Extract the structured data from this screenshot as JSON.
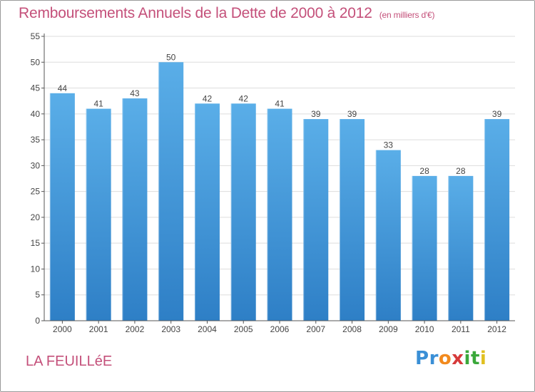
{
  "title": "Remboursements Annuels de la Dette de 2000 à 2012",
  "unit_note": "(en milliers d'€)",
  "commune": "LA FEUILLéE",
  "logo": {
    "letters": [
      "P",
      "r",
      "o",
      "x",
      "i",
      "t",
      "i"
    ],
    "colors": [
      "#3a8fd6",
      "#3a8fd6",
      "#f28a1e",
      "#d63a3a",
      "#3aa83a",
      "#3aa83a",
      "#e0c020"
    ]
  },
  "colors": {
    "bar_top": "#5aaee8",
    "bar_bottom": "#2e7fc6",
    "title": "#c4507a",
    "grid": "#dddddd"
  },
  "chart_data": {
    "type": "bar",
    "title": "Remboursements Annuels de la Dette de 2000 à 2012",
    "xlabel": "",
    "ylabel": "",
    "ylim": [
      0,
      55
    ],
    "yticks": [
      0,
      5,
      10,
      15,
      20,
      25,
      30,
      35,
      40,
      45,
      50,
      55
    ],
    "grid": true,
    "categories": [
      "2000",
      "2001",
      "2002",
      "2003",
      "2004",
      "2005",
      "2006",
      "2007",
      "2008",
      "2009",
      "2010",
      "2011",
      "2012"
    ],
    "values": [
      44,
      41,
      43,
      50,
      42,
      42,
      41,
      39,
      39,
      33,
      28,
      28,
      39
    ]
  }
}
